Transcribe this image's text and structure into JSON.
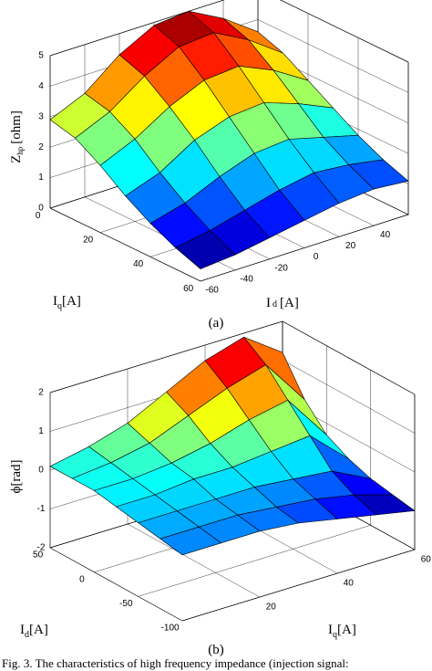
{
  "chart_data": [
    {
      "type": "surface",
      "x_label": {
        "main": "I",
        "sub": "d",
        "unit": "[A]"
      },
      "y_label": {
        "main": "I",
        "sub": "q",
        "unit": "[A]"
      },
      "z_label": {
        "main": "Z",
        "sub": "hp",
        "unit": "[ohm]"
      },
      "caption": "(a)",
      "x": [
        -60,
        -40,
        -20,
        0,
        20,
        40,
        60
      ],
      "y": [
        0,
        10,
        20,
        30,
        40,
        50,
        60
      ],
      "z": [
        [
          2.9,
          3.4,
          4.3,
          4.9,
          5.0,
          4.4,
          3.6
        ],
        [
          2.7,
          3.2,
          4.0,
          4.6,
          4.7,
          4.1,
          3.3
        ],
        [
          2.2,
          2.7,
          3.4,
          3.9,
          4.0,
          3.5,
          2.8
        ],
        [
          1.6,
          2.0,
          2.7,
          3.1,
          3.2,
          2.8,
          2.3
        ],
        [
          1.1,
          1.4,
          1.9,
          2.3,
          2.4,
          2.1,
          1.8
        ],
        [
          0.7,
          0.9,
          1.2,
          1.5,
          1.7,
          1.6,
          1.4
        ],
        [
          0.4,
          0.5,
          0.7,
          0.9,
          1.1,
          1.2,
          1.1
        ]
      ],
      "xlim": [
        -60,
        60
      ],
      "ylim": [
        0,
        60
      ],
      "zlim": [
        0,
        5
      ],
      "xticks": [
        -60,
        -40,
        -20,
        0,
        20,
        40
      ],
      "yticks": [
        0,
        20,
        40,
        60
      ],
      "zticks": [
        0,
        1,
        2,
        3,
        4,
        5
      ],
      "grid": true,
      "colormap": "jet"
    },
    {
      "type": "surface",
      "x_label": {
        "main": "I",
        "sub": "d",
        "unit": "[A]"
      },
      "y_label": {
        "main": "I",
        "sub": "q",
        "unit": "[A]"
      },
      "z_label": {
        "main": "ϕ[rad]"
      },
      "caption": "(b)",
      "x": [
        -100,
        -75,
        -50,
        -25,
        0,
        25,
        50
      ],
      "y": [
        0,
        10,
        20,
        30,
        40,
        50,
        60
      ],
      "z": [
        [
          -0.3,
          -0.2,
          -0.1,
          0.0,
          0.1,
          0.1,
          0.1
        ],
        [
          -0.3,
          -0.2,
          -0.1,
          0.0,
          0.1,
          0.2,
          0.3
        ],
        [
          -0.3,
          -0.2,
          -0.1,
          0.1,
          0.2,
          0.4,
          0.6
        ],
        [
          -0.4,
          -0.3,
          -0.1,
          0.1,
          0.4,
          0.8,
          1.1
        ],
        [
          -0.6,
          -0.4,
          -0.2,
          0.2,
          0.7,
          1.2,
          1.6
        ],
        [
          -0.8,
          -0.6,
          -0.3,
          0.3,
          0.9,
          1.5,
          1.9
        ],
        [
          -1.0,
          -0.9,
          -0.8,
          -0.6,
          -0.3,
          0.3,
          1.2
        ]
      ],
      "xlim": [
        -100,
        50
      ],
      "ylim": [
        0,
        60
      ],
      "zlim": [
        -2,
        2
      ],
      "xticks": [
        -100,
        -50,
        0,
        50
      ],
      "yticks": [
        20,
        40,
        60
      ],
      "zticks": [
        -2,
        -1,
        0,
        1,
        2
      ],
      "grid": true,
      "colormap": "jet"
    }
  ],
  "caption": "Fig. 3. The characteristics of high frequency impedance (injection signal:"
}
